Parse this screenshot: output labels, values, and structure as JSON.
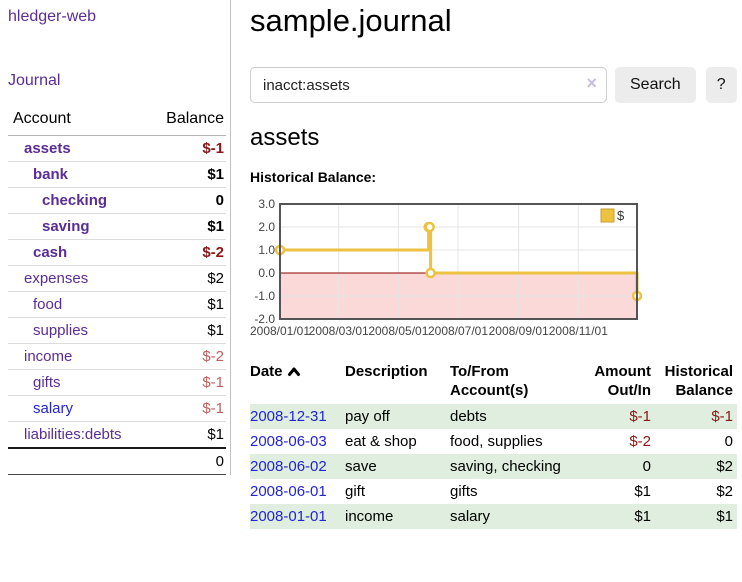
{
  "sidebar": {
    "app_title": "hledger-web",
    "journal_label": "Journal",
    "account_header": "Account",
    "balance_header": "Balance",
    "accounts": [
      {
        "name": "assets",
        "depth": 0,
        "bold": true,
        "link": "purple",
        "balance": "$-1",
        "balance_style": "neg"
      },
      {
        "name": "bank",
        "depth": 1,
        "bold": true,
        "link": "purple",
        "balance": "$1",
        "balance_style": "pos"
      },
      {
        "name": "checking",
        "depth": 2,
        "bold": true,
        "link": "purple",
        "balance": "0",
        "balance_style": "pos"
      },
      {
        "name": "saving",
        "depth": 2,
        "bold": true,
        "link": "purple",
        "balance": "$1",
        "balance_style": "pos"
      },
      {
        "name": "cash",
        "depth": 1,
        "bold": true,
        "link": "purple",
        "balance": "$-2",
        "balance_style": "neg"
      },
      {
        "name": "expenses",
        "depth": 0,
        "bold": false,
        "link": "purple",
        "balance": "$2",
        "balance_style": "pos"
      },
      {
        "name": "food",
        "depth": 1,
        "bold": false,
        "link": "purple",
        "balance": "$1",
        "balance_style": "pos"
      },
      {
        "name": "supplies",
        "depth": 1,
        "bold": false,
        "link": "purple",
        "balance": "$1",
        "balance_style": "pos"
      },
      {
        "name": "income",
        "depth": 0,
        "bold": false,
        "link": "purple",
        "balance": "$-2",
        "balance_style": "negdim"
      },
      {
        "name": "gifts",
        "depth": 1,
        "bold": false,
        "link": "purple",
        "balance": "$-1",
        "balance_style": "negdim"
      },
      {
        "name": "salary",
        "depth": 1,
        "bold": false,
        "link": "blue",
        "balance": "$-1",
        "balance_style": "negdim"
      },
      {
        "name": "liabilities:debts",
        "depth": 0,
        "bold": false,
        "link": "purple",
        "balance": "$1",
        "balance_style": "pos"
      }
    ],
    "total": "0"
  },
  "main": {
    "title": "sample.journal",
    "search": {
      "value": "inacct:assets",
      "clear_icon": "×",
      "button_label": "Search",
      "help_label": "?"
    },
    "account_heading": "assets",
    "chart_label": "Historical Balance:",
    "register": {
      "headers": [
        "Date",
        "Description",
        "To/From Account(s)",
        "Amount Out/In",
        "Historical Balance"
      ],
      "sort_column": "Date",
      "sort_direction": "ascending",
      "rows": [
        {
          "date": "2008-12-31",
          "description": "pay off",
          "accounts": "debts",
          "amount": "$-1",
          "amount_negative": true,
          "balance": "$-1",
          "balance_negative": true,
          "shaded": true
        },
        {
          "date": "2008-06-03",
          "description": "eat & shop",
          "accounts": "food, supplies",
          "amount": "$-2",
          "amount_negative": true,
          "balance": "0",
          "balance_negative": false,
          "shaded": false
        },
        {
          "date": "2008-06-02",
          "description": "save",
          "accounts": "saving, checking",
          "amount": "0",
          "amount_negative": false,
          "balance": "$2",
          "balance_negative": false,
          "shaded": true
        },
        {
          "date": "2008-06-01",
          "description": "gift",
          "accounts": "gifts",
          "amount": "$1",
          "amount_negative": false,
          "balance": "$2",
          "balance_negative": false,
          "shaded": false
        },
        {
          "date": "2008-01-01",
          "description": "income",
          "accounts": "salary",
          "amount": "$1",
          "amount_negative": false,
          "balance": "$1",
          "balance_negative": false,
          "shaded": true
        }
      ]
    }
  },
  "chart_data": {
    "type": "line",
    "style": "step-after",
    "title": "Historical Balance",
    "legend": {
      "label": "$",
      "position": "top-right"
    },
    "series": [
      {
        "name": "$",
        "color": "#edc240",
        "points": [
          {
            "date": "2008-01-01",
            "day": 0,
            "value": 1
          },
          {
            "date": "2008-06-01",
            "day": 152,
            "value": 2
          },
          {
            "date": "2008-06-02",
            "day": 153,
            "value": 2
          },
          {
            "date": "2008-06-03",
            "day": 154,
            "value": 0
          },
          {
            "date": "2008-12-31",
            "day": 365,
            "value": -1
          }
        ]
      }
    ],
    "xlim_days": [
      0,
      365
    ],
    "ylim": [
      -2,
      3
    ],
    "x_ticks": [
      {
        "label": "2008/01/01",
        "day": 0
      },
      {
        "label": "2008/03/01",
        "day": 60
      },
      {
        "label": "2008/05/01",
        "day": 121
      },
      {
        "label": "2008/07/01",
        "day": 182
      },
      {
        "label": "2008/09/01",
        "day": 244
      },
      {
        "label": "2008/11/01",
        "day": 305
      }
    ],
    "y_ticks": [
      "3.0",
      "2.0",
      "1.0",
      "0.0",
      "-1.0",
      "-2.0"
    ],
    "grid": true,
    "negative_fill": "#fbd9d9",
    "zero_line_color": "#8b0000",
    "border_color": "#545454",
    "gridline_color": "#e5e5e5",
    "tick_label_color": "#444444"
  },
  "colors": {
    "link_purple": "#5a2d96",
    "link_blue": "#2323d8",
    "negative_strong": "#8c1616",
    "negative_dim": "#c25f5f",
    "shaded_row_green": "#dfeede",
    "button_gray": "#ececec"
  }
}
